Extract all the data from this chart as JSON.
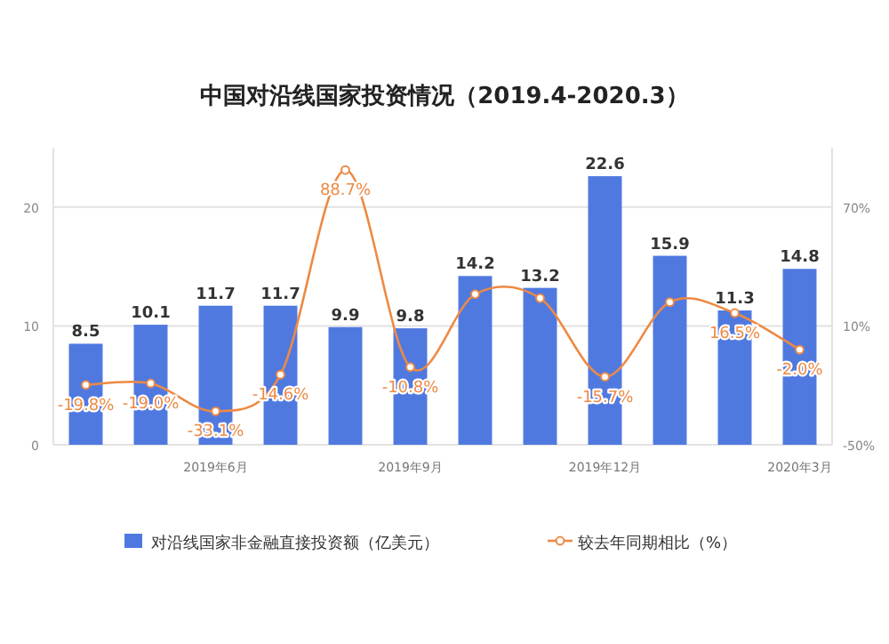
{
  "chart_data": {
    "type": "bar",
    "title": "中国对沿线国家投资情况（2019.4-2020.3）",
    "categories": [
      null,
      null,
      "2019年6月",
      null,
      null,
      "2019年9月",
      null,
      null,
      "2019年12月",
      null,
      null,
      "2020年3月"
    ],
    "series": [
      {
        "name": "对沿线国家非金融直接投资额（亿美元）",
        "color": "#5079e0",
        "values": [
          8.5,
          10.1,
          11.7,
          11.7,
          9.9,
          9.8,
          14.2,
          13.2,
          22.6,
          15.9,
          11.3,
          14.8
        ]
      },
      {
        "name": "较去年同期相比（%）",
        "type": "line",
        "axis": "y2",
        "color": "#ed8a45",
        "marker": "circle",
        "values": [
          -19.8,
          -19.0,
          -33.1,
          -14.6,
          88.7,
          -10.8,
          26.0,
          24.0,
          -15.7,
          22.0,
          16.5,
          -2.0
        ],
        "value_labels": [
          "-19.8%",
          "-19.0%",
          "-33.1%",
          "-14.6%",
          "88.7%",
          "-10.8%",
          null,
          null,
          "-15.7%",
          null,
          "16.5%",
          "-2.0%"
        ]
      }
    ],
    "data_labels": true,
    "ylim": [
      0,
      25
    ],
    "yticks": [
      0,
      10,
      20
    ],
    "y2lim": [
      -50,
      100
    ],
    "y2ticks": [
      {
        "value": -50,
        "label": "-50%"
      },
      {
        "value": 10,
        "label": "10%"
      },
      {
        "value": 70,
        "label": "70%"
      }
    ],
    "grid": "y",
    "legend": "bottom"
  }
}
